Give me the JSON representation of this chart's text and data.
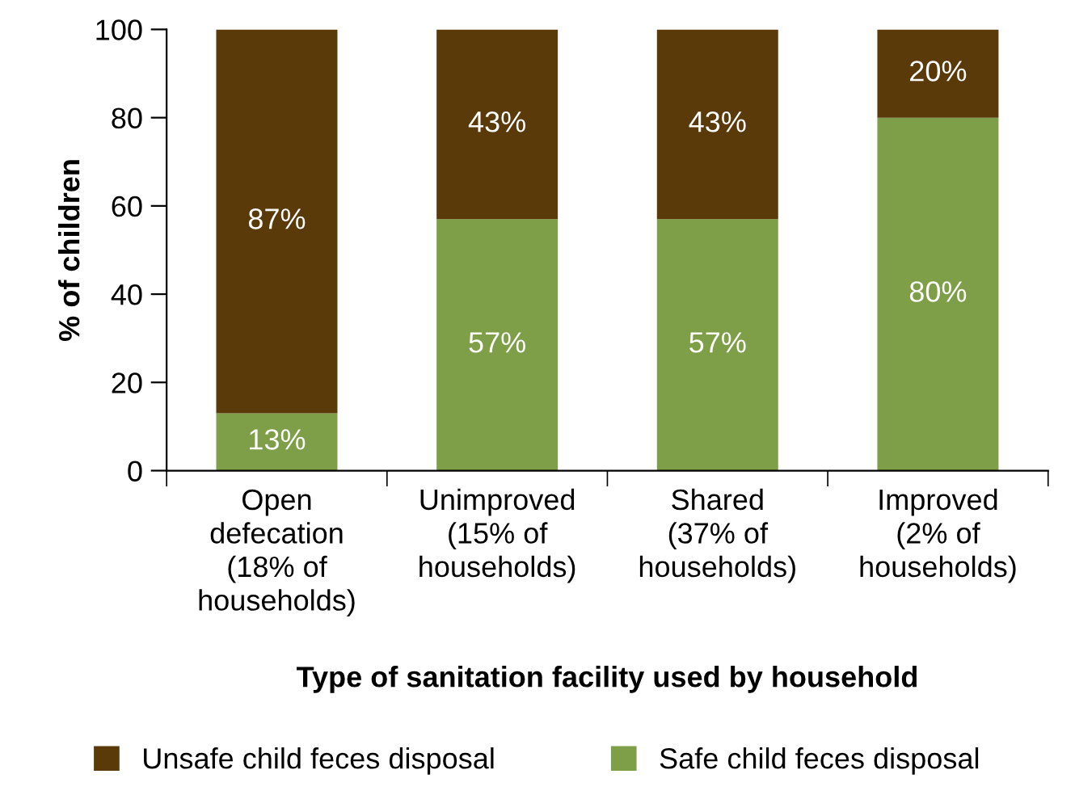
{
  "chart_data": {
    "type": "bar",
    "stacked": true,
    "xlabel": "Type of sanitation facility used by household",
    "ylabel": "% of children",
    "categories": [
      "Open\ndefecation\n(18% of\nhouseholds)",
      "Unimproved\n(15% of\nhouseholds)",
      "Shared\n(37% of\nhouseholds)",
      "Improved\n(2% of\nhouseholds)"
    ],
    "series": [
      {
        "name": "Safe child feces disposal",
        "color": "#7e9f48",
        "values": [
          13,
          57,
          57,
          80
        ],
        "value_labels": [
          "13%",
          "57%",
          "57%",
          "80%"
        ]
      },
      {
        "name": "Unsafe child feces disposal",
        "color": "#5b3a0a",
        "values": [
          87,
          43,
          43,
          20
        ],
        "value_labels": [
          "87%",
          "43%",
          "43%",
          "20%"
        ]
      }
    ],
    "ylim": [
      0,
      100
    ],
    "yticks": [
      0,
      20,
      40,
      60,
      80,
      100
    ],
    "grid": false,
    "legend": "bottom"
  }
}
